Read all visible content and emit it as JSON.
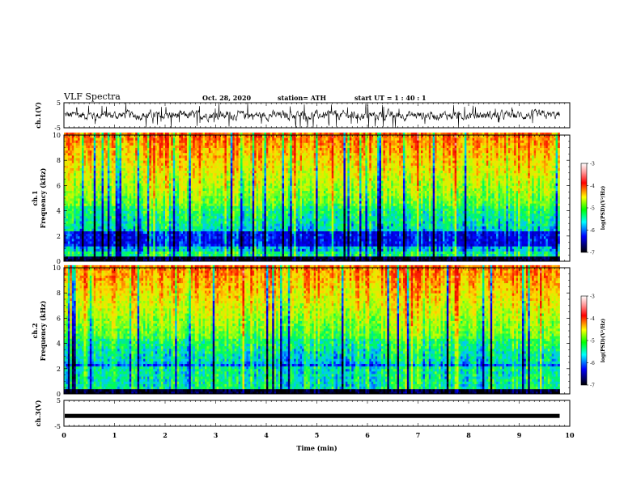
{
  "header": {
    "title": "VLF Spectra",
    "date": "Oct. 28, 2020",
    "station": "station= ATH",
    "start": "start  UT =   1 : 40 : 1"
  },
  "chart_data": [
    {
      "type": "line",
      "panel": "ch1-waveform",
      "ylabel": "ch.1(V)",
      "ylim": [
        -5,
        5
      ],
      "y_ticks": [
        "5",
        "-5"
      ],
      "xlim": [
        0,
        10
      ],
      "approx_baseline": 0,
      "approx_amplitude": 2,
      "note_color": "#000000"
    },
    {
      "type": "heatmap",
      "panel": "ch1-spectrogram",
      "ylabel_line1": "ch.1",
      "ylabel_line2": "Frequency (kHz)",
      "ylim": [
        0,
        10
      ],
      "y_ticks": [
        "0",
        "2",
        "4",
        "6",
        "8",
        "10"
      ],
      "xlim": [
        0,
        10
      ],
      "data_end_min": 9.8,
      "colorbar": {
        "label": "log(PSD)(V²/Hz)",
        "range": [
          -7,
          -3
        ],
        "ticks": [
          "-3",
          "-4",
          "-5",
          "-6",
          "-7"
        ],
        "colors": [
          "#ffffff",
          "#ff0000",
          "#ffff00",
          "#00ff00",
          "#00ffff",
          "#0000ff",
          "#000000"
        ]
      }
    },
    {
      "type": "heatmap",
      "panel": "ch2-spectrogram",
      "ylabel_line1": "ch.2",
      "ylabel_line2": "Frequency (kHz)",
      "ylim": [
        0,
        10
      ],
      "y_ticks": [
        "0",
        "2",
        "4",
        "6",
        "8",
        "10"
      ],
      "xlim": [
        0,
        10
      ],
      "data_end_min": 9.8,
      "colorbar": {
        "label": "log(PSD)(V²/Hz)",
        "range": [
          -7,
          -3
        ],
        "ticks": [
          "-3",
          "-4",
          "-5",
          "-6",
          "-7"
        ],
        "colors": [
          "#ffffff",
          "#ff0000",
          "#ffff00",
          "#00ff00",
          "#00ffff",
          "#0000ff",
          "#000000"
        ]
      }
    },
    {
      "type": "line",
      "panel": "ch3-waveform",
      "ylabel": "ch.3(V)",
      "ylim": [
        -5,
        5
      ],
      "y_ticks": [
        "5",
        "-5"
      ],
      "xlim": [
        0,
        10
      ],
      "approx_baseline": -1,
      "note_color": "#000000"
    }
  ],
  "x_axis": {
    "label": "Time (min)",
    "ticks": [
      "0",
      "1",
      "2",
      "3",
      "4",
      "5",
      "6",
      "7",
      "8",
      "9",
      "10"
    ]
  }
}
